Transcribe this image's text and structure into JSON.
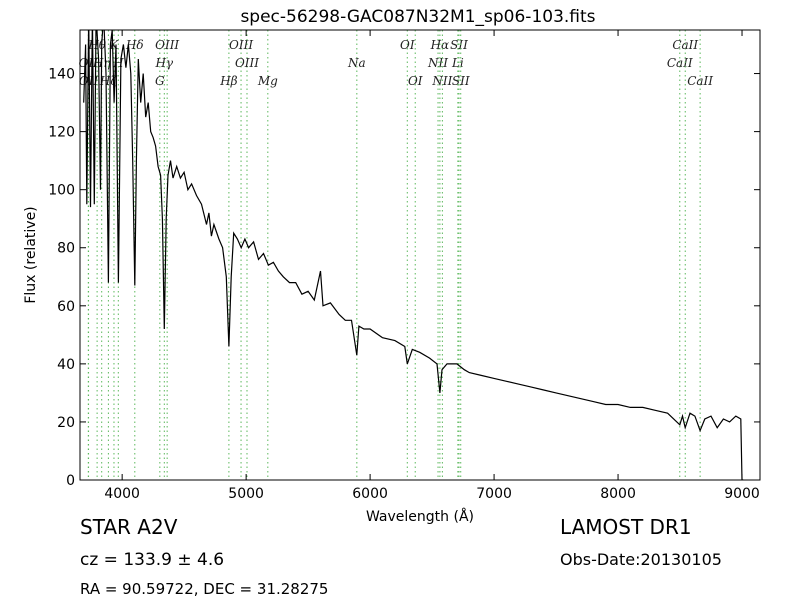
{
  "chart_data": {
    "type": "line",
    "title": "spec-56298-GAC087N32M1_sp06-103.fits",
    "x_label": "Wavelength (Å)",
    "y_label": "Flux (relative)",
    "xlim": [
      3660,
      9145
    ],
    "ylim": [
      0,
      155
    ],
    "xticks": [
      4000,
      5000,
      6000,
      7000,
      8000,
      9000
    ],
    "yticks": [
      0,
      20,
      40,
      60,
      80,
      100,
      120,
      140
    ],
    "color": "#000000",
    "line_color": "#5cb85c",
    "x": [
      3690,
      3705,
      3715,
      3730,
      3745,
      3760,
      3775,
      3790,
      3810,
      3825,
      3835,
      3850,
      3870,
      3889,
      3905,
      3920,
      3935,
      3950,
      3970,
      3990,
      4010,
      4030,
      4050,
      4070,
      4085,
      4102,
      4115,
      4130,
      4150,
      4170,
      4190,
      4210,
      4230,
      4250,
      4270,
      4290,
      4310,
      4325,
      4340,
      4355,
      4370,
      4390,
      4410,
      4440,
      4470,
      4500,
      4530,
      4560,
      4600,
      4640,
      4680,
      4700,
      4720,
      4740,
      4780,
      4810,
      4840,
      4861,
      4880,
      4900,
      4930,
      4960,
      4990,
      5020,
      5060,
      5100,
      5140,
      5180,
      5220,
      5260,
      5300,
      5350,
      5400,
      5450,
      5500,
      5550,
      5600,
      5620,
      5680,
      5750,
      5800,
      5850,
      5893,
      5910,
      5950,
      6000,
      6100,
      6200,
      6280,
      6300,
      6340,
      6400,
      6480,
      6540,
      6563,
      6580,
      6620,
      6700,
      6760,
      6800,
      6900,
      7000,
      7100,
      7200,
      7300,
      7400,
      7500,
      7600,
      7700,
      7800,
      7900,
      8000,
      8100,
      8200,
      8300,
      8400,
      8498,
      8520,
      8542,
      8580,
      8620,
      8662,
      8700,
      8750,
      8800,
      8850,
      8900,
      8950,
      8990,
      9000,
      9010
    ],
    "values": [
      130,
      150,
      95,
      160,
      94,
      160,
      95,
      160,
      145,
      100,
      150,
      160,
      140,
      68,
      150,
      155,
      130,
      150,
      68,
      145,
      150,
      142,
      150,
      140,
      110,
      67,
      110,
      145,
      130,
      140,
      125,
      130,
      120,
      118,
      115,
      108,
      105,
      90,
      52,
      90,
      105,
      110,
      104,
      108,
      104,
      106,
      100,
      102,
      98,
      95,
      88,
      92,
      84,
      88,
      83,
      80,
      70,
      46,
      70,
      85,
      83,
      80,
      83,
      80,
      82,
      76,
      78,
      74,
      75,
      72,
      70,
      68,
      68,
      64,
      65,
      62,
      72,
      60,
      61,
      57,
      55,
      55,
      43,
      53,
      52,
      52,
      49,
      48,
      46,
      40,
      45,
      44,
      42,
      40,
      30,
      38,
      40,
      40,
      38,
      37,
      36,
      35,
      34,
      33,
      32,
      31,
      30,
      29,
      28,
      27,
      26,
      26,
      25,
      25,
      24,
      23,
      19,
      22,
      18,
      23,
      22,
      17,
      21,
      22,
      18,
      21,
      20,
      22,
      21,
      0,
      0
    ],
    "spectral_lines": [
      {
        "name": "OII",
        "wavelength": 3727
      },
      {
        "name": "OII",
        "wavelength": 3729
      },
      {
        "name": "Hθ",
        "wavelength": 3798
      },
      {
        "name": "Hη",
        "wavelength": 3835
      },
      {
        "name": "Hζ",
        "wavelength": 3889
      },
      {
        "name": "K",
        "wavelength": 3934
      },
      {
        "name": "H",
        "wavelength": 3969
      },
      {
        "name": "Hδ",
        "wavelength": 4102
      },
      {
        "name": "G",
        "wavelength": 4304
      },
      {
        "name": "Hγ",
        "wavelength": 4340
      },
      {
        "name": "OIII",
        "wavelength": 4363
      },
      {
        "name": "Hβ",
        "wavelength": 4861
      },
      {
        "name": "OIII",
        "wavelength": 4959
      },
      {
        "name": "OIII",
        "wavelength": 5007
      },
      {
        "name": "Mg",
        "wavelength": 5175
      },
      {
        "name": "Na",
        "wavelength": 5893
      },
      {
        "name": "OI",
        "wavelength": 6300
      },
      {
        "name": "OI",
        "wavelength": 6364
      },
      {
        "name": "NII",
        "wavelength": 6548
      },
      {
        "name": "Hα",
        "wavelength": 6563
      },
      {
        "name": "NII",
        "wavelength": 6583
      },
      {
        "name": "Li",
        "wavelength": 6708
      },
      {
        "name": "SII",
        "wavelength": 6717
      },
      {
        "name": "SII",
        "wavelength": 6731
      },
      {
        "name": "CaII",
        "wavelength": 8498
      },
      {
        "name": "CaII",
        "wavelength": 8542
      },
      {
        "name": "CaII",
        "wavelength": 8662
      }
    ],
    "notes": {
      "class": "STAR   A2V",
      "cz": "cz = 133.9 ± 4.6",
      "coords": "RA = 90.59722, DEC = 31.28275",
      "survey": "LAMOST DR1",
      "obs_date": "Obs-Date:20130105"
    }
  }
}
